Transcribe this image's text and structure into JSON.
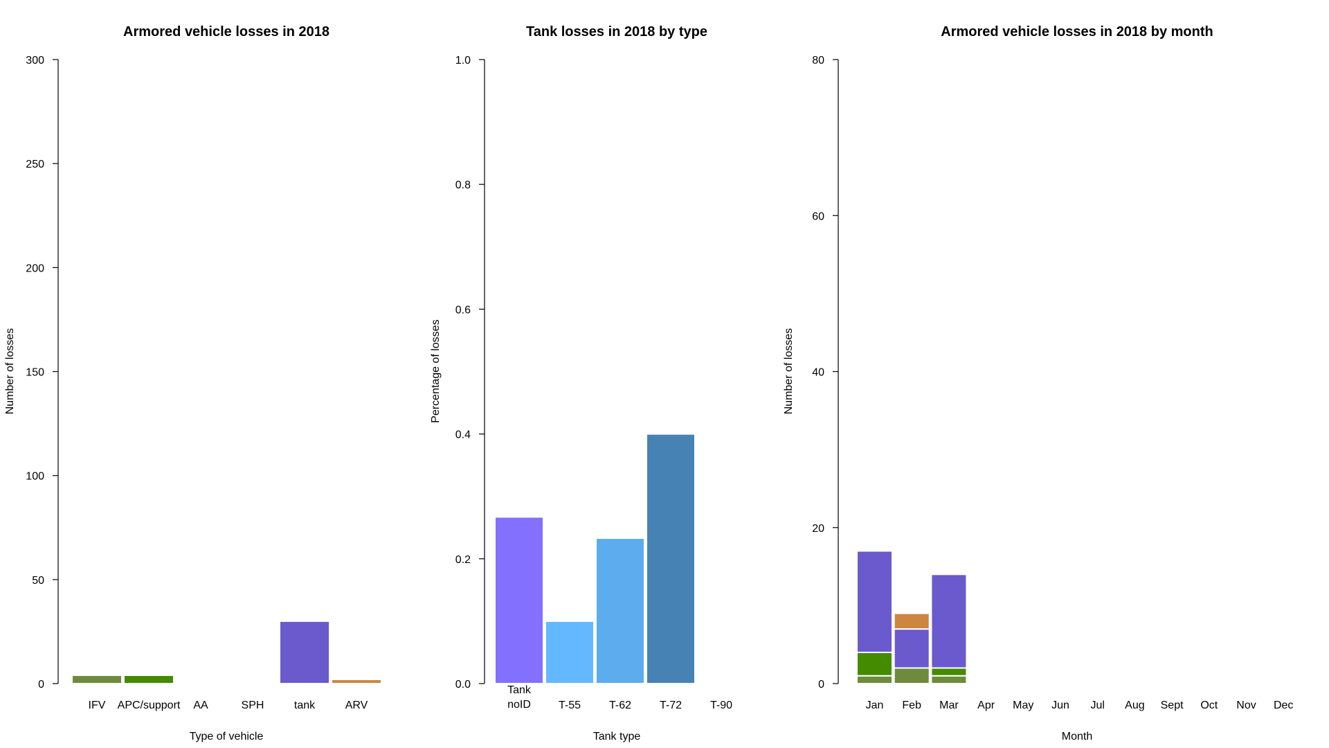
{
  "colors": {
    "IFV": "#6E8B3D",
    "APC/support": "#458B00",
    "tank": "#6A5ACD",
    "ARV": "#CD853F",
    "Tank noID": "#8470FF",
    "T-55": "#63B8FF",
    "T-62": "#5CACEE",
    "T-72": "#4682B4"
  },
  "chart_data": [
    {
      "type": "bar",
      "title": "Armored vehicle losses in 2018",
      "xlabel": "Type of vehicle",
      "ylabel": "Number of losses",
      "ylim": [
        0,
        300
      ],
      "yticks": [
        "0",
        "50",
        "100",
        "150",
        "200",
        "250",
        "300"
      ],
      "categories": [
        "IFV",
        "APC/support",
        "AA",
        "SPH",
        "tank",
        "ARV"
      ],
      "values": [
        4,
        4,
        0,
        0,
        30,
        2
      ]
    },
    {
      "type": "bar",
      "title": "Tank losses in 2018 by type",
      "xlabel": "Tank type",
      "ylabel": "Percentage of losses",
      "ylim": [
        0,
        1.0
      ],
      "yticks": [
        "0.0",
        "0.2",
        "0.4",
        "0.6",
        "0.8",
        "1.0"
      ],
      "categories": [
        "Tank\nnoID",
        "T-55",
        "T-62",
        "T-72",
        "T-90"
      ],
      "values": [
        0.267,
        0.1,
        0.233,
        0.4,
        0
      ]
    },
    {
      "type": "bar",
      "stacked": true,
      "title": "Armored vehicle losses in 2018 by month",
      "xlabel": "Month",
      "ylabel": "Number of losses",
      "ylim": [
        0,
        80
      ],
      "yticks": [
        "0",
        "20",
        "40",
        "60",
        "80"
      ],
      "categories": [
        "Jan",
        "Feb",
        "Mar",
        "Apr",
        "May",
        "Jun",
        "Jul",
        "Aug",
        "Sept",
        "Oct",
        "Nov",
        "Dec"
      ],
      "series": [
        {
          "key": "IFV",
          "values": [
            1,
            2,
            1,
            0,
            0,
            0,
            0,
            0,
            0,
            0,
            0,
            0
          ]
        },
        {
          "key": "APC/support",
          "values": [
            3,
            0,
            1,
            0,
            0,
            0,
            0,
            0,
            0,
            0,
            0,
            0
          ]
        },
        {
          "key": "tank",
          "values": [
            13,
            5,
            12,
            0,
            0,
            0,
            0,
            0,
            0,
            0,
            0,
            0
          ]
        },
        {
          "key": "ARV",
          "values": [
            0,
            2,
            0,
            0,
            0,
            0,
            0,
            0,
            0,
            0,
            0,
            0
          ]
        }
      ]
    }
  ]
}
